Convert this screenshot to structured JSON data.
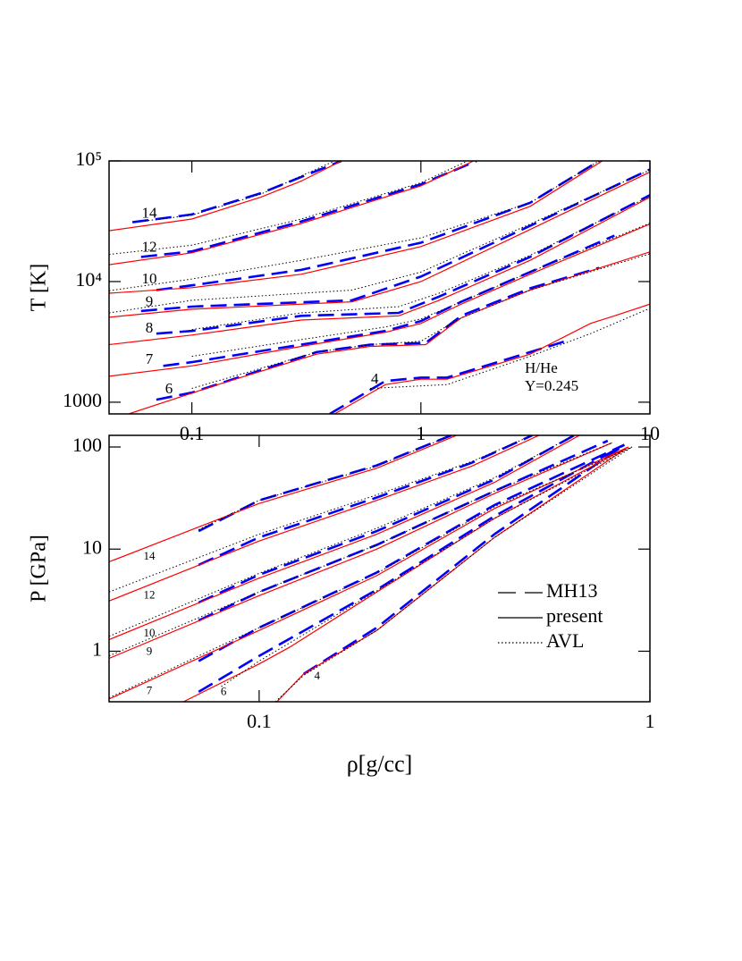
{
  "chart_data": [
    {
      "type": "line",
      "log_x": true,
      "log_y": true,
      "xlim": [
        0.0435,
        10
      ],
      "ylim": [
        800,
        100000
      ],
      "xticks": [
        0.1,
        1,
        10
      ],
      "yticks": [
        1000,
        {
          "value": 10000,
          "label": "10⁴"
        },
        {
          "value": 100000,
          "label": "10⁵"
        }
      ],
      "ylabel": "T [K]",
      "annotations": [
        "H/He",
        "Y=0.245"
      ],
      "curve_labels": [
        "14",
        "12",
        "10",
        "9",
        "8",
        "7",
        "6",
        "4"
      ],
      "series": [
        {
          "name": "MH13",
          "color": "#0000ff",
          "style": "dashed",
          "curves": [
            {
              "x": [
                0.055,
                0.1,
                0.2,
                0.45
              ],
              "values": [
                31000,
                36000,
                54000,
                100000
              ]
            },
            {
              "x": [
                0.06,
                0.1,
                0.3,
                1,
                1.75
              ],
              "values": [
                16000,
                17800,
                31500,
                64000,
                100000
              ]
            },
            {
              "x": [
                0.07,
                0.1,
                0.3,
                1,
                3,
                6
              ],
              "values": [
                8500,
                9300,
                12500,
                21000,
                45000,
                100000
              ]
            },
            {
              "x": [
                0.06,
                0.1,
                0.5,
                1,
                3,
                10
              ],
              "values": [
                5700,
                6200,
                7000,
                11000,
                29000,
                85000
              ]
            },
            {
              "x": [
                0.07,
                0.1,
                0.3,
                0.8,
                1.2,
                3,
                10
              ],
              "values": [
                3700,
                3900,
                5200,
                5500,
                7500,
                16000,
                52000
              ]
            },
            {
              "x": [
                0.075,
                0.1,
                0.3,
                0.7,
                1,
                1.5,
                3,
                7
              ],
              "values": [
                2000,
                2150,
                3000,
                3900,
                4700,
                6800,
                12000,
                24000
              ]
            },
            {
              "x": [
                0.07,
                0.1,
                0.35,
                0.6,
                1.05,
                1.5,
                3,
                6
              ],
              "values": [
                1050,
                1200,
                2600,
                3000,
                3100,
                5200,
                8800,
                13000
              ]
            },
            {
              "x": [
                0.4,
                0.7,
                1,
                1.3,
                3,
                4.5
              ],
              "values": [
                800,
                1500,
                1600,
                1600,
                2600,
                3300
              ]
            }
          ]
        },
        {
          "name": "present",
          "color": "#ff0000",
          "style": "solid",
          "curves": [
            {
              "x": [
                0.0435,
                0.1,
                0.2,
                0.3,
                0.45
              ],
              "values": [
                26400,
                33000,
                50000,
                68000,
                100000
              ]
            },
            {
              "x": [
                0.0435,
                0.1,
                0.3,
                1,
                1.7
              ],
              "values": [
                13800,
                17300,
                30300,
                62100,
                100000
              ]
            },
            {
              "x": [
                0.0435,
                0.1,
                0.3,
                1,
                3,
                6.2
              ],
              "values": [
                8000,
                8900,
                11500,
                19500,
                42000,
                100000
              ]
            },
            {
              "x": [
                0.0435,
                0.1,
                0.5,
                1,
                3,
                10
              ],
              "values": [
                5060,
                5900,
                6800,
                10000,
                27000,
                81000
              ]
            },
            {
              "x": [
                0.0435,
                0.1,
                0.3,
                0.8,
                1.2,
                3,
                10
              ],
              "values": [
                3000,
                3600,
                4800,
                5200,
                7000,
                15000,
                50000
              ]
            },
            {
              "x": [
                0.0435,
                0.1,
                0.3,
                0.7,
                1,
                1.5,
                3,
                10
              ],
              "values": [
                1640,
                2000,
                2900,
                3800,
                4500,
                6500,
                11500,
                30000
              ]
            },
            {
              "x": [
                0.053,
                0.13,
                0.35,
                0.6,
                1.05,
                1.5,
                3,
                10
              ],
              "values": [
                800,
                1400,
                2500,
                2900,
                3000,
                5000,
                8500,
                17600
              ]
            },
            {
              "x": [
                0.42,
                0.7,
                1,
                1.3,
                3,
                5.5,
                7,
                10
              ],
              "values": [
                800,
                1400,
                1550,
                1550,
                2500,
                4500,
                5200,
                6500
              ]
            }
          ]
        },
        {
          "name": "AVL",
          "color": "#000000",
          "style": "dotted",
          "curves": [
            {
              "x": [
                0.06,
                0.1,
                0.2,
                0.42
              ],
              "values": [
                31500,
                35500,
                53000,
                100000
              ]
            },
            {
              "x": [
                0.0435,
                0.1,
                0.3,
                1,
                1.6
              ],
              "values": [
                16800,
                20000,
                33000,
                66000,
                100000
              ]
            },
            {
              "x": [
                0.0435,
                0.1,
                0.3,
                1,
                3,
                6
              ],
              "values": [
                8400,
                10500,
                15000,
                23000,
                45000,
                100000
              ]
            },
            {
              "x": [
                0.0435,
                0.1,
                0.5,
                1,
                3,
                10
              ],
              "values": [
                5500,
                7000,
                8500,
                12000,
                30000,
                84000
              ]
            },
            {
              "x": [
                0.1,
                0.3,
                0.8,
                1.2,
                3,
                10
              ],
              "values": [
                4000,
                5500,
                6200,
                8000,
                16500,
                51000
              ]
            },
            {
              "x": [
                0.1,
                0.3,
                0.7,
                1,
                1.5,
                3,
                10
              ],
              "values": [
                2400,
                3300,
                4200,
                4900,
                6800,
                12000,
                30500
              ]
            },
            {
              "x": [
                0.1,
                0.35,
                0.6,
                1,
                1.5,
                3,
                10
              ],
              "values": [
                1300,
                2600,
                3000,
                3200,
                5000,
                8500,
                17000
              ]
            },
            {
              "x": [
                0.6,
                1.3,
                3,
                5.5,
                10
              ],
              "values": [
                1300,
                1400,
                2400,
                3700,
                6000
              ]
            }
          ]
        }
      ]
    },
    {
      "type": "line",
      "log_x": true,
      "log_y": true,
      "xlim": [
        0.0413,
        1
      ],
      "ylim": [
        0.32,
        130
      ],
      "xticks": [
        0.1,
        1
      ],
      "yticks": [
        1,
        10,
        100
      ],
      "xlabel": "ρ[g/cc]",
      "ylabel": "P [GPa]",
      "legend": "right",
      "curve_labels": [
        "14",
        "12",
        "10",
        "9",
        "7",
        "6",
        "4"
      ],
      "series": [
        {
          "name": "MH13",
          "color": "#0000ff",
          "style": "dashed",
          "curves": [
            {
              "x": [
                0.07,
                0.1,
                0.2,
                0.31
              ],
              "values": [
                15,
                30,
                66,
                130
              ]
            },
            {
              "x": [
                0.07,
                0.1,
                0.2,
                0.35,
                0.5
              ],
              "values": [
                7,
                13,
                32,
                70,
                130
              ]
            },
            {
              "x": [
                0.07,
                0.1,
                0.2,
                0.4,
                0.64
              ],
              "values": [
                3,
                5.6,
                15,
                48,
                130
              ]
            },
            {
              "x": [
                0.07,
                0.1,
                0.2,
                0.4,
                0.78
              ],
              "values": [
                2,
                3.8,
                11,
                37,
                115
              ]
            },
            {
              "x": [
                0.07,
                0.1,
                0.2,
                0.4,
                0.86
              ],
              "values": [
                0.8,
                1.7,
                5.9,
                27,
                105
              ]
            },
            {
              "x": [
                0.07,
                0.1,
                0.2,
                0.4,
                0.86
              ],
              "values": [
                0.4,
                0.9,
                4,
                21,
                105
              ]
            },
            {
              "x": [
                0.13,
                0.2,
                0.4,
                0.86
              ],
              "values": [
                0.6,
                1.7,
                14,
                105
              ]
            }
          ]
        },
        {
          "name": "present",
          "color": "#ff0000",
          "style": "solid",
          "curves": [
            {
              "x": [
                0.0413,
                0.1,
                0.2,
                0.32
              ],
              "values": [
                7.5,
                28,
                62,
                130
              ]
            },
            {
              "x": [
                0.0413,
                0.1,
                0.2,
                0.35,
                0.52
              ],
              "values": [
                3.1,
                12,
                30,
                65,
                130
              ]
            },
            {
              "x": [
                0.0413,
                0.1,
                0.2,
                0.4,
                0.66
              ],
              "values": [
                1.3,
                5.2,
                14,
                45,
                130
              ]
            },
            {
              "x": [
                0.0413,
                0.1,
                0.2,
                0.4,
                0.8
              ],
              "values": [
                0.85,
                3.5,
                10,
                35,
                110
              ]
            },
            {
              "x": [
                0.0413,
                0.1,
                0.2,
                0.4,
                0.88
              ],
              "values": [
                0.34,
                1.6,
                5.5,
                25,
                100
              ]
            },
            {
              "x": [
                0.064,
                0.1,
                0.12,
                0.2,
                0.4,
                0.88
              ],
              "values": [
                0.32,
                0.75,
                1.1,
                3.8,
                20,
                100
              ]
            },
            {
              "x": [
                0.111,
                0.13,
                0.2,
                0.4,
                0.88
              ],
              "values": [
                0.32,
                0.6,
                1.6,
                13,
                100
              ]
            }
          ]
        },
        {
          "name": "AVL",
          "color": "#000000",
          "style": "dotted",
          "curves": [
            {
              "x": [
                0.07,
                0.1,
                0.2,
                0.31
              ],
              "values": [
                15.5,
                30,
                65,
                130
              ]
            },
            {
              "x": [
                0.0413,
                0.1,
                0.2,
                0.35,
                0.5
              ],
              "values": [
                3.8,
                14,
                34,
                72,
                130
              ]
            },
            {
              "x": [
                0.0413,
                0.1,
                0.2,
                0.4,
                0.64
              ],
              "values": [
                1.4,
                5.8,
                16,
                50,
                130
              ]
            },
            {
              "x": [
                0.0413,
                0.1,
                0.2,
                0.4,
                0.8
              ],
              "values": [
                0.9,
                3.8,
                11,
                37,
                110
              ]
            },
            {
              "x": [
                0.0413,
                0.1,
                0.2,
                0.4,
                0.9
              ],
              "values": [
                0.35,
                1.7,
                5.8,
                26,
                100
              ]
            },
            {
              "x": [
                0.08,
                0.1,
                0.2,
                0.4,
                0.9
              ],
              "values": [
                0.45,
                0.8,
                3.9,
                20,
                100
              ]
            },
            {
              "x": [
                0.11,
                0.13,
                0.2,
                0.4,
                0.9
              ],
              "values": [
                0.32,
                0.58,
                1.6,
                13,
                100
              ]
            }
          ]
        }
      ]
    }
  ]
}
